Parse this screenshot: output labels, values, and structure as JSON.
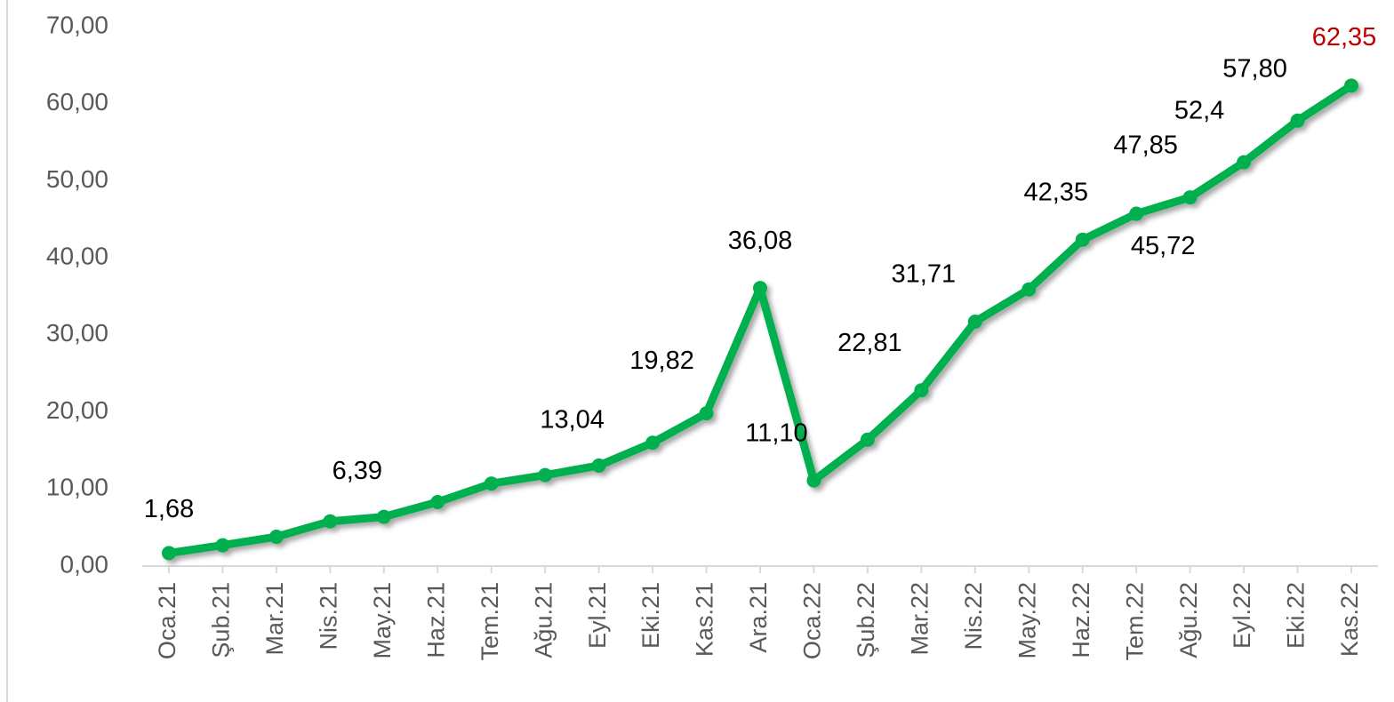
{
  "chart_data": {
    "type": "line",
    "categories": [
      "Oca.21",
      "Şub.21",
      "Mar.21",
      "Nis.21",
      "May.21",
      "Haz.21",
      "Tem.21",
      "Ağu.21",
      "Eyl.21",
      "Eki.21",
      "Kas.21",
      "Ara.21",
      "Oca.22",
      "Şub.22",
      "Mar.22",
      "Nis.22",
      "May.22",
      "Haz.22",
      "Tem.22",
      "Ağu.22",
      "Eyl.22",
      "Eki.22",
      "Kas.22"
    ],
    "series": [
      {
        "color": "#00b050",
        "values": [
          1.68,
          2.7,
          3.8,
          5.8,
          6.39,
          8.3,
          10.7,
          11.8,
          13.04,
          16.0,
          19.82,
          36.08,
          11.1,
          16.4,
          22.81,
          31.71,
          35.9,
          42.35,
          45.72,
          47.85,
          52.4,
          57.8,
          62.35
        ],
        "value_labels": [
          "1,68",
          null,
          null,
          null,
          "6,39",
          null,
          null,
          null,
          "13,04",
          null,
          "19,82",
          "36,08",
          "11,10",
          null,
          "22,81",
          "31,71",
          null,
          "42,35",
          "45,72",
          "47,85",
          "52,4",
          "57,80",
          "62,35"
        ],
        "last_label_color": "#c00000"
      }
    ],
    "ylim": [
      0,
      70
    ],
    "yticks": [
      {
        "value": 0,
        "label": "0,00"
      },
      {
        "value": 10,
        "label": "10,00"
      },
      {
        "value": 20,
        "label": "20,00"
      },
      {
        "value": 30,
        "label": "30,00"
      },
      {
        "value": 40,
        "label": "40,00"
      },
      {
        "value": 50,
        "label": "50,00"
      },
      {
        "value": 60,
        "label": "60,00"
      },
      {
        "value": 70,
        "label": "70,00"
      }
    ],
    "grid": false
  }
}
